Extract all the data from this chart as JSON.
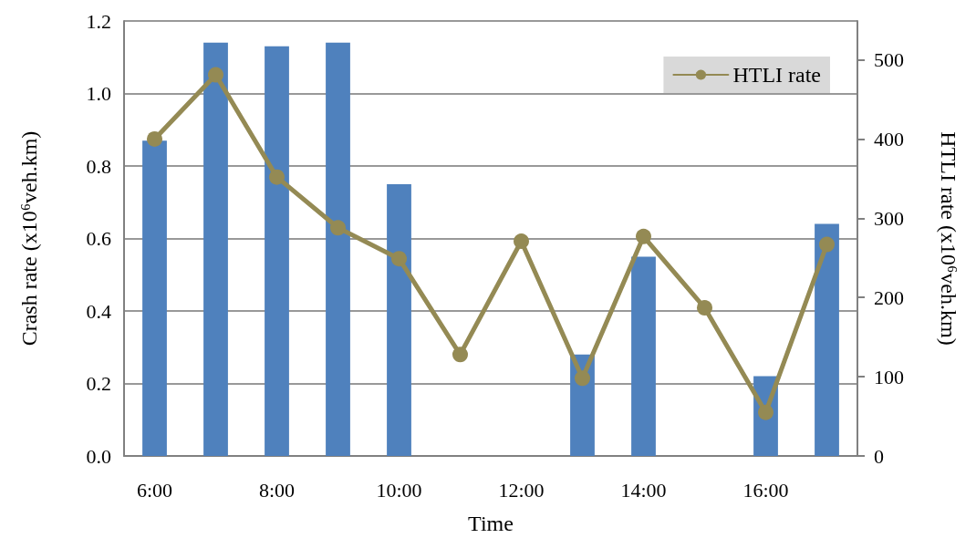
{
  "chart_data": {
    "type": "bar",
    "xlabel": "Time",
    "ylabel": "Crash rate (x10⁶veh.km)",
    "y2label": "HTLI rate (x10⁶veh.km)",
    "categories": [
      "6:00",
      null,
      "8:00",
      null,
      "10:00",
      null,
      "12:00",
      null,
      "14:00",
      null,
      "16:00",
      null
    ],
    "series": [
      {
        "color": "#4f81bd",
        "values": [
          0.87,
          1.14,
          1.13,
          1.14,
          0.75,
          0,
          0,
          0.28,
          0.55,
          0,
          0.22,
          0.64
        ]
      },
      {
        "type": "line",
        "name": "HTLI rate",
        "color": "#948a54",
        "axis": "y2",
        "marker": "circle",
        "line_style": "solid",
        "values": [
          400,
          481,
          352,
          288,
          249,
          128,
          271,
          98,
          277,
          187,
          55,
          267
        ]
      }
    ],
    "ylim": [
      0,
      1.2
    ],
    "yticks": [
      {
        "value": 0,
        "label": "0.0"
      },
      {
        "value": 0.2,
        "label": "0.2"
      },
      {
        "value": 0.4,
        "label": "0.4"
      },
      {
        "value": 0.6,
        "label": "0.6"
      },
      {
        "value": 0.8,
        "label": "0.8"
      },
      {
        "value": 1,
        "label": "1.0"
      },
      {
        "value": 1.2,
        "label": "1.2"
      }
    ],
    "y2lim": [
      0,
      549
    ],
    "y2ticks": [
      0,
      100,
      200,
      300,
      400,
      500
    ],
    "grid": "y",
    "legend": "top right"
  }
}
